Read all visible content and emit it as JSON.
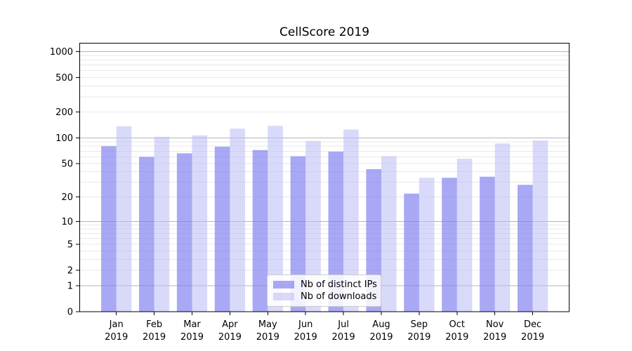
{
  "chart_data": {
    "type": "bar",
    "title": "CellScore 2019",
    "categories": [
      "Jan",
      "Feb",
      "Mar",
      "Apr",
      "May",
      "Jun",
      "Jul",
      "Aug",
      "Sep",
      "Oct",
      "Nov",
      "Dec"
    ],
    "category_year": "2019",
    "series": [
      {
        "name": "Nb of distinct IPs",
        "color": "rgba(125,125,240,0.67)",
        "values": [
          80,
          60,
          66,
          79,
          72,
          61,
          69,
          43,
          22,
          34,
          35,
          28
        ]
      },
      {
        "name": "Nb of downloads",
        "color": "rgba(185,185,246,0.55)",
        "values": [
          136,
          103,
          107,
          128,
          138,
          92,
          125,
          61,
          34,
          57,
          86,
          93
        ]
      }
    ],
    "yscale": "log1p",
    "ylim": [
      0,
      1240
    ],
    "y_ticks": [
      0,
      1,
      2,
      5,
      10,
      20,
      50,
      100,
      200,
      500,
      1000
    ],
    "grid": {
      "major_values": [
        1,
        10,
        100,
        1000
      ],
      "major_color": "#b5b5b5",
      "minor_color": "#e9e9e9"
    },
    "legend_position": "lower center",
    "axis_color": "#000000",
    "background_color": "#ffffff",
    "xlabel": "",
    "ylabel": ""
  }
}
